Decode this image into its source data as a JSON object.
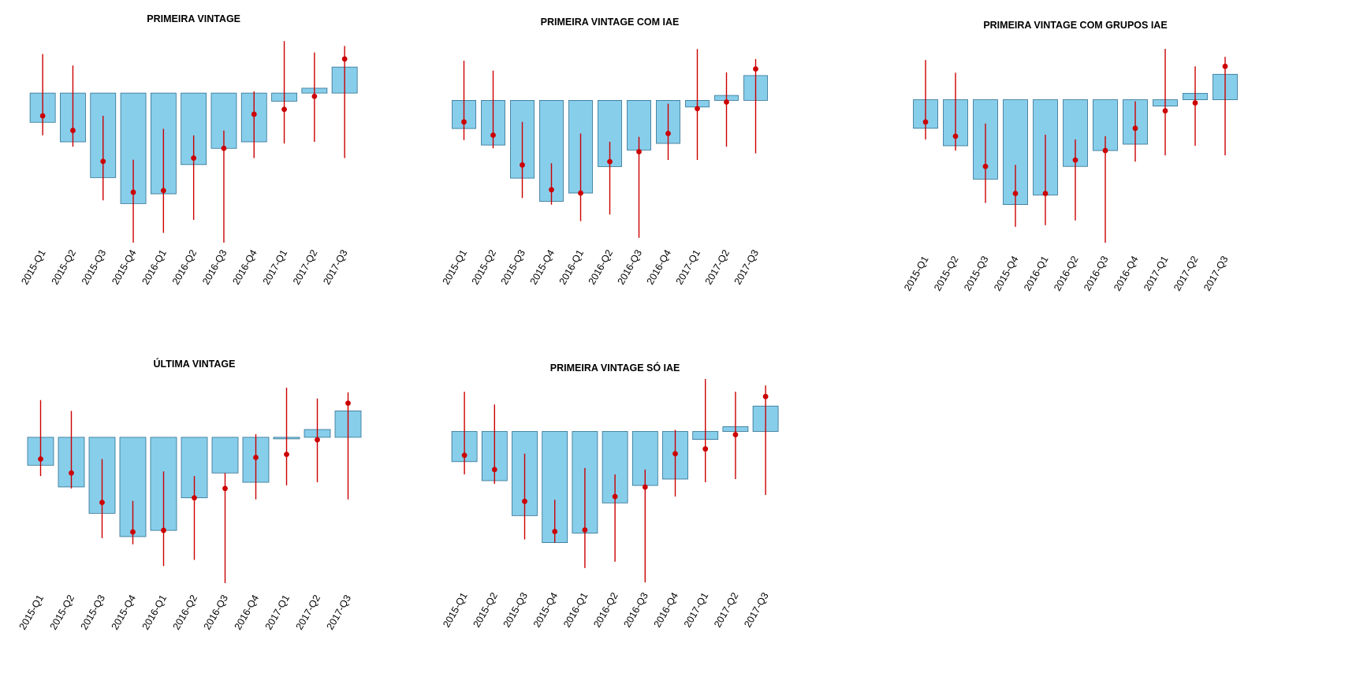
{
  "chart_data": [
    {
      "type": "bar",
      "title": "PRIMEIRA VINTAGE",
      "categories": [
        "2015-Q1",
        "2015-Q2",
        "2015-Q3",
        "2015-Q4",
        "2016-Q1",
        "2016-Q2",
        "2016-Q3",
        "2016-Q4",
        "2017-Q1",
        "2017-Q2",
        "2017-Q3"
      ],
      "values": [
        -0.9,
        -1.5,
        -2.6,
        -3.4,
        -3.1,
        -2.2,
        -1.7,
        -1.5,
        -0.25,
        0.15,
        0.8
      ],
      "points": [
        -0.7,
        -1.15,
        -2.1,
        -3.05,
        -3.0,
        -2.0,
        -1.7,
        -0.65,
        -0.5,
        -0.1,
        1.05
      ],
      "error_low": [
        -1.3,
        -1.65,
        -3.3,
        -4.6,
        -4.3,
        -3.9,
        -4.6,
        -2.0,
        -1.55,
        -1.5,
        -2.0
      ],
      "error_high": [
        1.2,
        0.85,
        -0.7,
        -2.05,
        -1.1,
        -1.3,
        -1.15,
        0.05,
        1.6,
        1.25,
        1.45
      ],
      "ylim": [
        -4.7,
        1.7
      ],
      "xlabel": "",
      "ylabel": "",
      "grid": false
    },
    {
      "type": "bar",
      "title": "PRIMEIRA VINTAGE COM IAE",
      "categories": [
        "2015-Q1",
        "2015-Q2",
        "2015-Q3",
        "2015-Q4",
        "2016-Q1",
        "2016-Q2",
        "2016-Q3",
        "2016-Q4",
        "2017-Q1",
        "2017-Q2",
        "2017-Q3"
      ],
      "values": [
        -0.85,
        -1.35,
        -2.35,
        -3.05,
        -2.8,
        -2.0,
        -1.5,
        -1.3,
        -0.2,
        0.15,
        0.75
      ],
      "points": [
        -0.65,
        -1.05,
        -1.95,
        -2.7,
        -2.8,
        -1.85,
        -1.55,
        -1.0,
        -0.25,
        -0.05,
        0.95
      ],
      "error_low": [
        -1.2,
        -1.45,
        -2.95,
        -3.15,
        -3.65,
        -3.45,
        -4.15,
        -1.8,
        -1.8,
        -1.4,
        -1.6
      ],
      "error_high": [
        1.2,
        0.9,
        -0.65,
        -1.9,
        -1.0,
        -1.25,
        -1.1,
        -0.1,
        1.55,
        0.85,
        1.25
      ],
      "ylim": [
        -4.3,
        1.7
      ],
      "xlabel": "",
      "ylabel": "",
      "grid": false
    },
    {
      "type": "bar",
      "title": "PRIMEIRA VINTAGE COM GRUPOS IAE",
      "categories": [
        "2015-Q1",
        "2015-Q2",
        "2015-Q3",
        "2015-Q4",
        "2016-Q1",
        "2016-Q2",
        "2016-Q3",
        "2016-Q4",
        "2017-Q1",
        "2017-Q2",
        "2017-Q3"
      ],
      "values": [
        -0.9,
        -1.45,
        -2.5,
        -3.3,
        -3.0,
        -2.1,
        -1.6,
        -1.4,
        -0.2,
        0.2,
        0.8
      ],
      "points": [
        -0.7,
        -1.15,
        -2.1,
        -2.95,
        -2.95,
        -1.9,
        -1.6,
        -0.9,
        -0.35,
        -0.1,
        1.05
      ],
      "error_low": [
        -1.25,
        -1.6,
        -3.25,
        -4.0,
        -3.95,
        -3.8,
        -4.5,
        -1.95,
        -1.75,
        -1.45,
        -1.75
      ],
      "error_high": [
        1.25,
        0.85,
        -0.75,
        -2.05,
        -1.1,
        -1.25,
        -1.15,
        -0.05,
        1.6,
        1.05,
        1.35
      ],
      "ylim": [
        -4.6,
        1.7
      ],
      "xlabel": "",
      "ylabel": "",
      "grid": false
    },
    {
      "type": "bar",
      "title": "ÚLTIMA VINTAGE",
      "categories": [
        "2015-Q1",
        "2015-Q2",
        "2015-Q3",
        "2015-Q4",
        "2016-Q1",
        "2016-Q2",
        "2016-Q3",
        "2016-Q4",
        "2017-Q1",
        "2017-Q2",
        "2017-Q3"
      ],
      "values": [
        -0.9,
        -1.6,
        -2.45,
        -3.2,
        -3.0,
        -1.95,
        -1.15,
        -1.45,
        -0.05,
        0.25,
        0.85
      ],
      "points": [
        -0.7,
        -1.15,
        -2.1,
        -3.05,
        -3.0,
        -1.95,
        -1.65,
        -0.65,
        -0.55,
        -0.08,
        1.1
      ],
      "error_low": [
        -1.25,
        -1.65,
        -3.25,
        -3.45,
        -4.15,
        -3.95,
        -4.7,
        -2.0,
        -1.55,
        -1.45,
        -2.0
      ],
      "error_high": [
        1.2,
        0.85,
        -0.7,
        -2.05,
        -1.1,
        -1.25,
        -1.15,
        0.1,
        1.6,
        1.25,
        1.45
      ],
      "ylim": [
        -4.7,
        1.7
      ],
      "xlabel": "",
      "ylabel": "",
      "grid": false
    },
    {
      "type": "bar",
      "title": "PRIMEIRA VINTAGE SÓ IAE",
      "categories": [
        "2015-Q1",
        "2015-Q2",
        "2015-Q3",
        "2015-Q4",
        "2016-Q1",
        "2016-Q2",
        "2016-Q3",
        "2016-Q4",
        "2017-Q1",
        "2017-Q2",
        "2017-Q3"
      ],
      "values": [
        -0.95,
        -1.55,
        -2.65,
        -3.5,
        -3.2,
        -2.25,
        -1.7,
        -1.5,
        -0.25,
        0.15,
        0.8
      ],
      "points": [
        -0.75,
        -1.2,
        -2.2,
        -3.15,
        -3.1,
        -2.05,
        -1.75,
        -0.7,
        -0.55,
        -0.1,
        1.1
      ],
      "error_low": [
        -1.35,
        -1.65,
        -3.4,
        -3.5,
        -4.3,
        -4.1,
        -4.75,
        -2.05,
        -1.6,
        -1.5,
        -2.0
      ],
      "error_high": [
        1.25,
        0.85,
        -0.7,
        -2.15,
        -1.15,
        -1.35,
        -1.2,
        0.05,
        1.65,
        1.25,
        1.45
      ],
      "ylim": [
        -4.8,
        1.7
      ],
      "xlabel": "",
      "ylabel": "",
      "grid": false
    }
  ],
  "colors": {
    "bar_fill": "#87ceeb",
    "bar_stroke": "#2f6f8f",
    "point": "#cc0000",
    "errorbar": "#cc0000"
  }
}
